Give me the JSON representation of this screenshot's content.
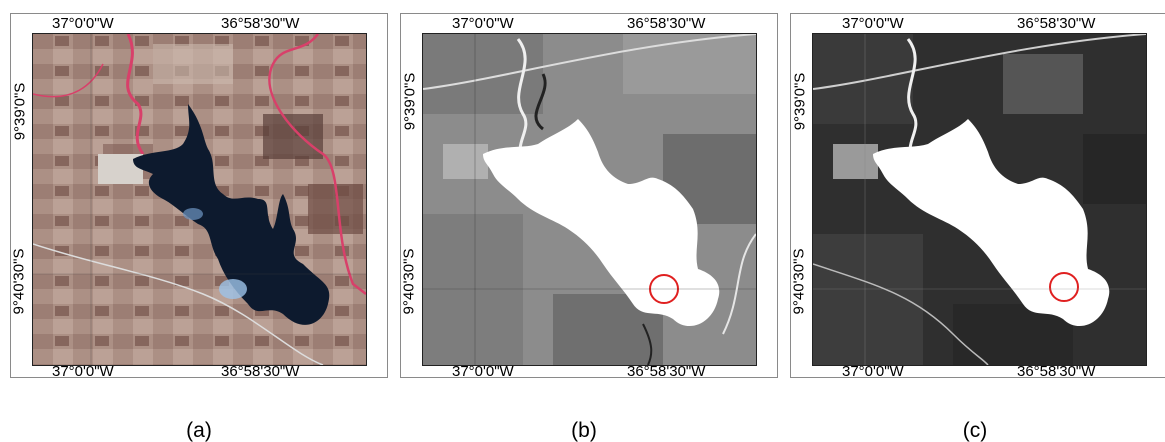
{
  "coords": {
    "lon_left": "37°0'0\"W",
    "lon_right": "36°58'30\"W",
    "lat_top": "9°39'0\"S",
    "lat_bottom": "9°40'30\"S"
  },
  "panels": [
    {
      "id": "a",
      "caption": "(a)",
      "style": "false-color composite",
      "circle": false
    },
    {
      "id": "b",
      "caption": "(b)",
      "style": "grayscale",
      "circle": true
    },
    {
      "id": "c",
      "caption": "(c)",
      "style": "grayscale high contrast",
      "circle": true
    }
  ],
  "colors": {
    "water_a": "#0d1a2e",
    "water_bc": "#ffffff",
    "highlight_circle": "#e02020",
    "border": "#8a8a8a"
  }
}
